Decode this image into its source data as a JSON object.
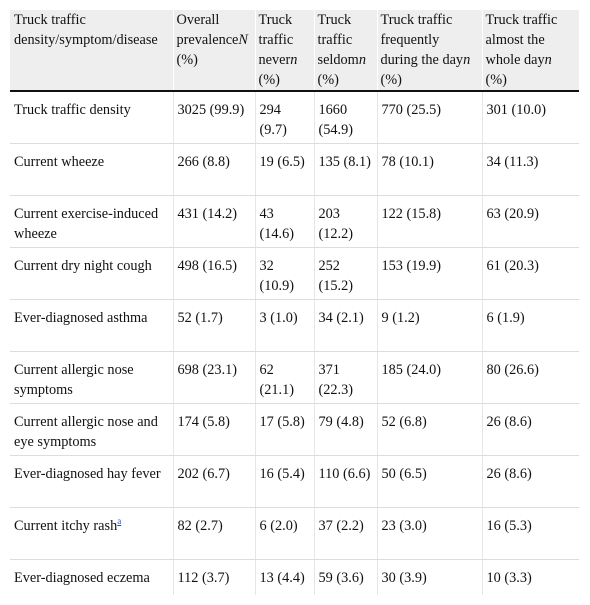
{
  "header": {
    "col1": "Truck traffic density/symptom/disease",
    "col2": {
      "pre": "Overall prevalence",
      "var": "N",
      "post": " (%)"
    },
    "col3": {
      "pre": "Truck traffic never",
      "var": "n",
      "post": " (%)"
    },
    "col4": {
      "pre": "Truck traffic seldom",
      "var": "n",
      "post": " (%)"
    },
    "col5": {
      "pre": "Truck traffic frequently during the day",
      "var": "n",
      "post": " (%)"
    },
    "col6": {
      "pre": "Truck traffic almost the whole day",
      "var": "n",
      "post": " (%)"
    }
  },
  "rows": [
    {
      "label": "Truck traffic density",
      "footnote": "",
      "overall": "3025 (99.9)",
      "never": "294 (9.7)",
      "seldom": "1660 (54.9)",
      "frequent": "770 (25.5)",
      "whole_day": "301 (10.0)"
    },
    {
      "label": "Current wheeze",
      "footnote": "",
      "overall": "266 (8.8)",
      "never": "19 (6.5)",
      "seldom": "135 (8.1)",
      "frequent": "78 (10.1)",
      "whole_day": "34 (11.3)"
    },
    {
      "label": "Current exercise-induced wheeze",
      "footnote": "",
      "overall": "431 (14.2)",
      "never": "43 (14.6)",
      "seldom": "203 (12.2)",
      "frequent": "122 (15.8)",
      "whole_day": "63 (20.9)"
    },
    {
      "label": "Current dry night cough",
      "footnote": "",
      "overall": "498 (16.5)",
      "never": "32 (10.9)",
      "seldom": "252 (15.2)",
      "frequent": "153 (19.9)",
      "whole_day": "61 (20.3)"
    },
    {
      "label": "Ever-diagnosed asthma",
      "footnote": "",
      "overall": "52 (1.7)",
      "never": "3 (1.0)",
      "seldom": "34 (2.1)",
      "frequent": "9 (1.2)",
      "whole_day": "6 (1.9)"
    },
    {
      "label": "Current allergic nose symptoms",
      "footnote": "",
      "overall": "698 (23.1)",
      "never": "62 (21.1)",
      "seldom": "371 (22.3)",
      "frequent": "185 (24.0)",
      "whole_day": "80 (26.6)"
    },
    {
      "label": "Current allergic nose and eye symptoms",
      "footnote": "",
      "overall": "174 (5.8)",
      "never": "17 (5.8)",
      "seldom": "79 (4.8)",
      "frequent": "52 (6.8)",
      "whole_day": "26 (8.6)"
    },
    {
      "label": "Ever-diagnosed hay fever",
      "footnote": "",
      "overall": "202 (6.7)",
      "never": "16 (5.4)",
      "seldom": "110 (6.6)",
      "frequent": "50 (6.5)",
      "whole_day": "26 (8.6)"
    },
    {
      "label": "Current itchy rash",
      "footnote": "a",
      "overall": "82 (2.7)",
      "never": "6 (2.0)",
      "seldom": "37 (2.2)",
      "frequent": "23 (3.0)",
      "whole_day": "16 (5.3)"
    },
    {
      "label": "Ever-diagnosed eczema",
      "footnote": "",
      "overall": "112 (3.7)",
      "never": "13 (4.4)",
      "seldom": "59 (3.6)",
      "frequent": "30 (3.9)",
      "whole_day": "10 (3.3)"
    }
  ]
}
